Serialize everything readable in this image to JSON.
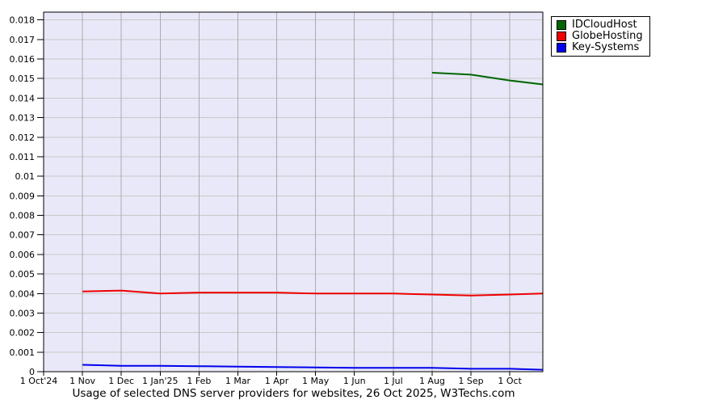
{
  "title": {
    "text": "Usage of selected DNS server providers for websites, 26 Oct 2025, W3Techs.com"
  },
  "legend": {
    "position": "top-right-outside",
    "items": [
      {
        "label": "IDCloudHost",
        "color": "#006600"
      },
      {
        "label": "GlobeHosting",
        "color": "#ee0000"
      },
      {
        "label": "Key-Systems",
        "color": "#0000ee"
      }
    ]
  },
  "chart_data": {
    "type": "line",
    "title": "Usage of selected DNS server providers for websites, 26 Oct 2025, W3Techs.com",
    "xlabel": "",
    "ylabel": "",
    "x_unit": "months since 1 Oct 2024",
    "xlim": [
      0,
      12.85
    ],
    "ylim": [
      0,
      0.0184
    ],
    "grid": true,
    "plot_bg": "#e8e8f8",
    "grid_color_h": "#c8c8c8",
    "grid_color_v": "#ababab",
    "axis_color": "#000000",
    "x_tick_positions": [
      0,
      1,
      2,
      3,
      4,
      5,
      6,
      7,
      8,
      9,
      10,
      11,
      12
    ],
    "x_tick_labels": [
      "1 Oct'24",
      "1 Nov",
      "1 Dec",
      "1 Jan'25",
      "1 Feb",
      "1 Mar",
      "1 Apr",
      "1 May",
      "1 Jun",
      "1 Jul",
      "1 Aug",
      "1 Sep",
      "1 Oct"
    ],
    "y_tick_positions": [
      0,
      0.001,
      0.002,
      0.003,
      0.004,
      0.005,
      0.006,
      0.007,
      0.008,
      0.009,
      0.01,
      0.011,
      0.012,
      0.013,
      0.014,
      0.015,
      0.016,
      0.017,
      0.018
    ],
    "y_tick_labels": [
      "0",
      "0.001",
      "0.002",
      "0.003",
      "0.004",
      "0.005",
      "0.006",
      "0.007",
      "0.008",
      "0.009",
      "0.01",
      "0.011",
      "0.012",
      "0.013",
      "0.014",
      "0.015",
      "0.016",
      "0.017",
      "0.018"
    ],
    "legend_position": "top-right-outside",
    "series": [
      {
        "name": "IDCloudHost",
        "color": "#006600",
        "x": [
          10,
          11,
          12,
          12.85
        ],
        "values": [
          0.0153,
          0.0152,
          0.0149,
          0.0147
        ]
      },
      {
        "name": "GlobeHosting",
        "color": "#ee0000",
        "x": [
          1,
          2,
          3,
          4,
          5,
          6,
          7,
          8,
          9,
          10,
          11,
          12,
          12.85
        ],
        "values": [
          0.0041,
          0.00415,
          0.004,
          0.00405,
          0.00405,
          0.00405,
          0.004,
          0.004,
          0.004,
          0.00395,
          0.0039,
          0.00395,
          0.004
        ]
      },
      {
        "name": "Key-Systems",
        "color": "#0000ee",
        "x": [
          1,
          2,
          3,
          4,
          5,
          6,
          7,
          8,
          9,
          10,
          11,
          12,
          12.85
        ],
        "values": [
          0.00035,
          0.0003,
          0.0003,
          0.00028,
          0.00026,
          0.00024,
          0.00022,
          0.0002,
          0.0002,
          0.0002,
          0.00015,
          0.00015,
          0.0001
        ]
      }
    ]
  }
}
